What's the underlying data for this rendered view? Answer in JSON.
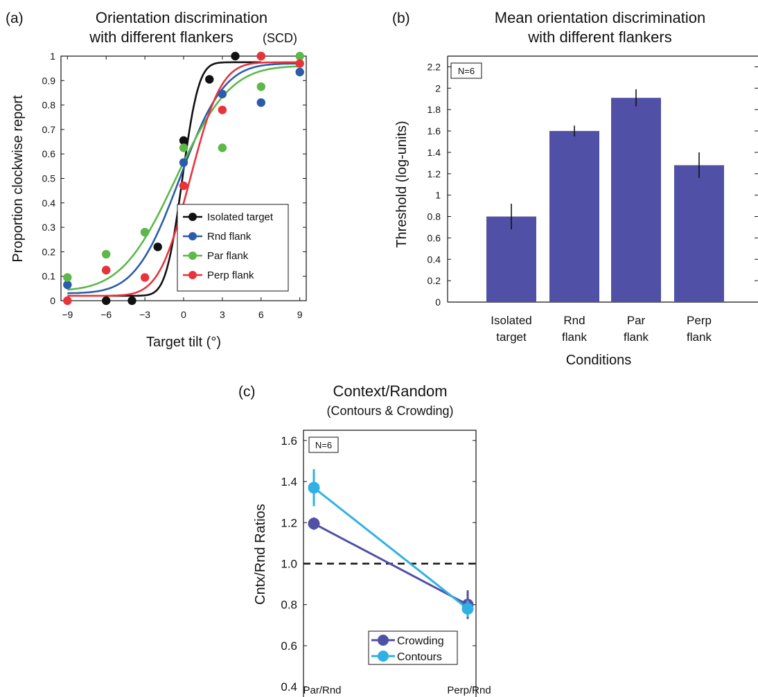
{
  "colors": {
    "black": "#111111",
    "blue": "#2a5caa",
    "green": "#5cb848",
    "red": "#e8333b",
    "bar": "#5050a6",
    "crowding": "#5050a6",
    "contours": "#2fb1e3"
  },
  "panel_a": {
    "letter": "(a)",
    "title_line1": "Orientation discrimination",
    "title_line2": "with different flankers",
    "title_tag": "(SCD)",
    "xlabel": "Target tilt (°)",
    "ylabel": "Proportion clockwise report"
  },
  "panel_b": {
    "letter": "(b)",
    "title_line1": "Mean orientation discrimination",
    "title_line2": "with different flankers",
    "xlabel": "Conditions",
    "ylabel": "Threshold (log-units)",
    "n_label": "N=6"
  },
  "panel_c": {
    "letter": "(c)",
    "title_line1": "Context/Random",
    "title_line2": "(Contours & Crowding)",
    "ylabel": "Cntx/Rnd Ratios",
    "n_label": "N=6"
  },
  "chart_data": [
    {
      "type": "scatter",
      "title": "Orientation discrimination with different flankers (SCD)",
      "xlabel": "Target tilt (°)",
      "ylabel": "Proportion clockwise report",
      "xlim": [
        -9.5,
        9.5
      ],
      "ylim": [
        0,
        1
      ],
      "xticks": [
        -9,
        -6,
        -3,
        0,
        3,
        6,
        9
      ],
      "xtick_labels": [
        "−9",
        "−6",
        "−3",
        "0",
        "3",
        "6",
        "9"
      ],
      "yticks": [
        0,
        0.1,
        0.2,
        0.3,
        0.4,
        0.5,
        0.6,
        0.7,
        0.8,
        0.9,
        1
      ],
      "ytick_labels": [
        "0",
        "0.1",
        "0.2",
        "0.3",
        "0.4",
        "0.5",
        "0.6",
        "0.7",
        "0.8",
        "0.9",
        "1"
      ],
      "legend_position": "bottom-right",
      "series": [
        {
          "name": "Isolated target",
          "color": "#111111",
          "points": [
            [
              -6,
              0
            ],
            [
              -4,
              0
            ],
            [
              -2,
              0.22
            ],
            [
              0,
              0.655
            ],
            [
              2,
              0.905
            ],
            [
              4,
              1.0
            ],
            [
              6,
              1.0
            ]
          ],
          "fit": {
            "mu": -0.1,
            "sigma": 1.0,
            "lower": 0.02,
            "upper": 0.975,
            "x_range": [
              -6,
              6
            ]
          }
        },
        {
          "name": "Rnd flank",
          "color": "#2a5caa",
          "points": [
            [
              -9,
              0.065
            ],
            [
              -6,
              0.125
            ],
            [
              -3,
              0.28
            ],
            [
              0,
              0.565
            ],
            [
              3,
              0.845
            ],
            [
              6,
              0.81
            ],
            [
              9,
              0.935
            ]
          ],
          "fit": {
            "mu": -0.3,
            "sigma": 2.7,
            "lower": 0.03,
            "upper": 0.97,
            "x_range": [
              -9,
              9
            ]
          }
        },
        {
          "name": "Par flank",
          "color": "#5cb848",
          "points": [
            [
              -9,
              0.095
            ],
            [
              -6,
              0.19
            ],
            [
              -3,
              0.28
            ],
            [
              0,
              0.625
            ],
            [
              3,
              0.625
            ],
            [
              6,
              0.875
            ],
            [
              9,
              1.0
            ]
          ],
          "fit": {
            "mu": -0.6,
            "sigma": 3.3,
            "lower": 0.04,
            "upper": 0.96,
            "x_range": [
              -9,
              9
            ]
          }
        },
        {
          "name": "Perp flank",
          "color": "#e8333b",
          "points": [
            [
              -9,
              0
            ],
            [
              -6,
              0.125
            ],
            [
              -3,
              0.095
            ],
            [
              0,
              0.47
            ],
            [
              3,
              0.78
            ],
            [
              6,
              1.0
            ],
            [
              9,
              0.97
            ]
          ],
          "fit": {
            "mu": 0.5,
            "sigma": 1.9,
            "lower": 0.02,
            "upper": 0.975,
            "x_range": [
              -9,
              9
            ]
          }
        }
      ]
    },
    {
      "type": "bar",
      "title": "Mean orientation discrimination with different flankers",
      "xlabel": "Conditions",
      "ylabel": "Threshold (log-units)",
      "categories": [
        [
          "Isolated",
          "target"
        ],
        [
          "Rnd",
          "flank"
        ],
        [
          "Par",
          "flank"
        ],
        [
          "Perp",
          "flank"
        ]
      ],
      "values": [
        0.8,
        1.6,
        1.91,
        1.28
      ],
      "errors": [
        0.12,
        0.05,
        0.08,
        0.12
      ],
      "ylim": [
        0,
        2.3
      ],
      "yticks": [
        0,
        0.2,
        0.4,
        0.6,
        0.8,
        1,
        1.2,
        1.4,
        1.6,
        1.8,
        2,
        2.2
      ],
      "ytick_labels": [
        "0",
        "0.2",
        "0.4",
        "0.6",
        "0.8",
        "1",
        "1.2",
        "1.4",
        "1.6",
        "1.8",
        "2",
        "2.2"
      ],
      "color": "#5050a6"
    },
    {
      "type": "line",
      "title": "Context/Random (Contours & Crowding)",
      "ylabel": "Cntx/Rnd Ratios",
      "categories": [
        "Par/Rnd",
        "Perp/Rnd"
      ],
      "ylim": [
        0.35,
        1.65
      ],
      "yticks": [
        0.4,
        0.6,
        0.8,
        1.0,
        1.2,
        1.4,
        1.6
      ],
      "ytick_labels": [
        "0.4",
        "0.6",
        "0.8",
        "1.0",
        "1.2",
        "1.4",
        "1.6"
      ],
      "reference_line": 1.0,
      "legend_position": "bottom-right",
      "series": [
        {
          "name": "Crowding",
          "color": "#5050a6",
          "values": [
            1.195,
            0.8
          ],
          "errors": [
            0.03,
            0.07
          ]
        },
        {
          "name": "Contours",
          "color": "#2fb1e3",
          "values": [
            1.37,
            0.78
          ],
          "errors": [
            0.09,
            0.04
          ]
        }
      ]
    }
  ]
}
